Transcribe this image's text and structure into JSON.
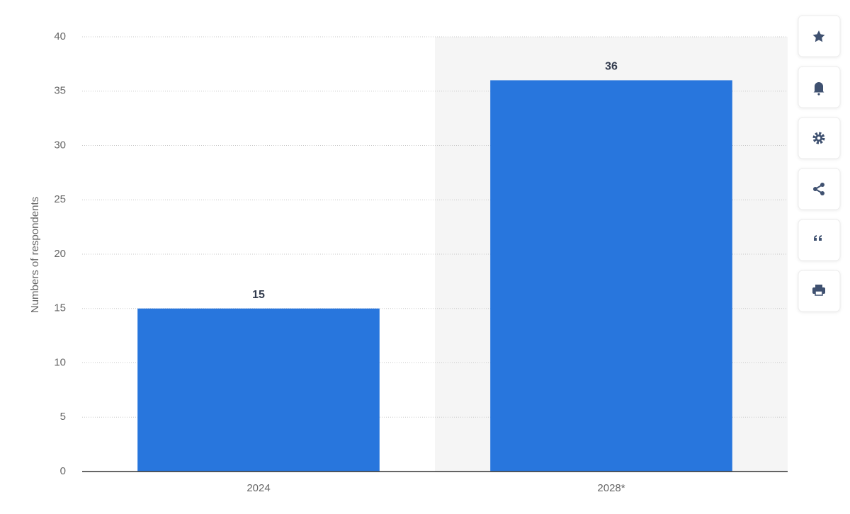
{
  "chart_data": {
    "type": "bar",
    "y_label": "Numbers of respondents",
    "categories": [
      "2024",
      "2028*"
    ],
    "values": [
      15,
      36
    ],
    "color": "#2876dd",
    "ylim": [
      0,
      40
    ],
    "yticks": [
      0,
      5,
      10,
      15,
      20,
      25,
      30,
      35,
      40
    ],
    "grid": true
  }
}
